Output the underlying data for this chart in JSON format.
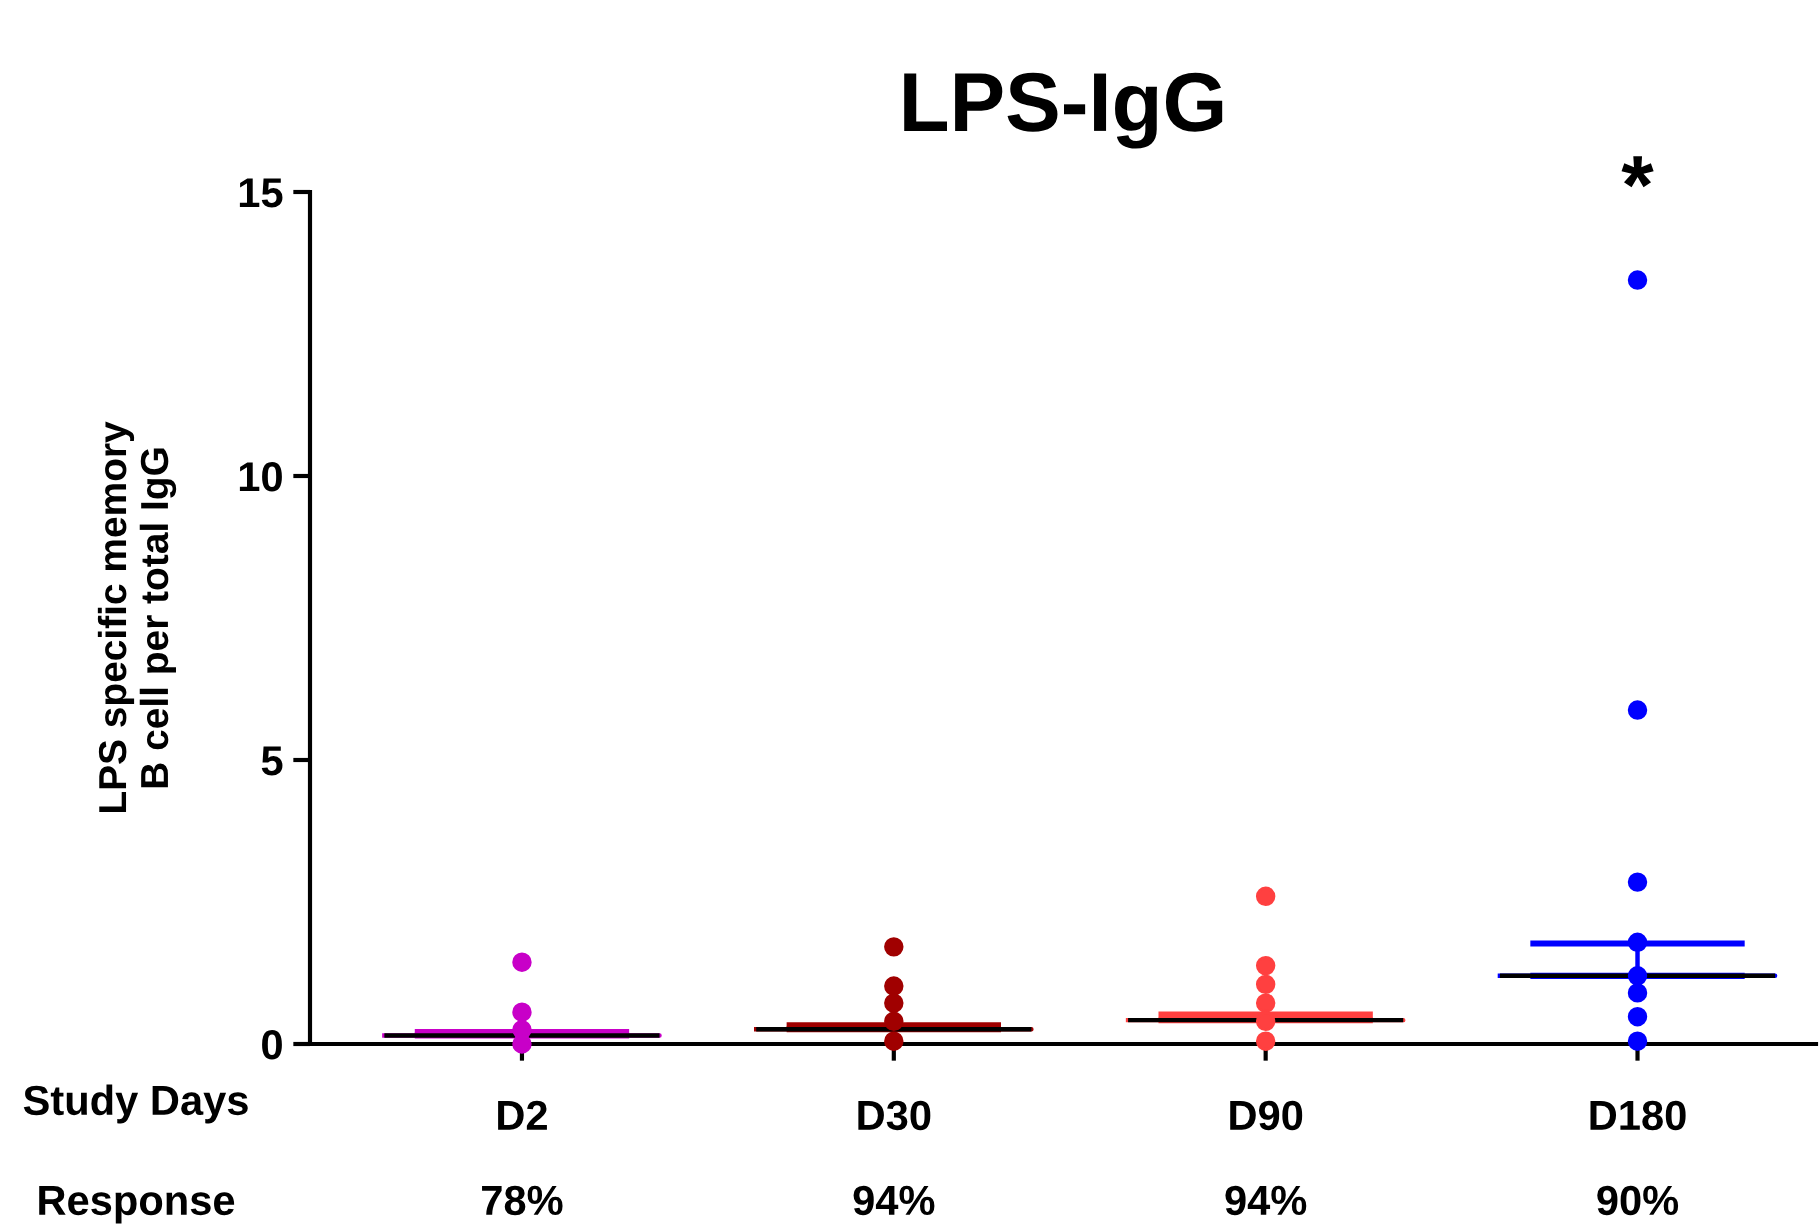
{
  "chart_data": {
    "type": "scatter",
    "title": "LPS-IgG",
    "xlabel": "Study Days",
    "ylabel": "LPS specific memory\nB cell per total IgG",
    "categories": [
      "D2",
      "D30",
      "D90",
      "D180"
    ],
    "series": [
      {
        "color": "#c800c8",
        "marker": "circle",
        "x": [
          "D2",
          "D2",
          "D2",
          "D2"
        ],
        "values": [
          1.44,
          0.56,
          0.25,
          0
        ]
      },
      {
        "color": "#a00000",
        "marker": "circle",
        "x": [
          "D30",
          "D30",
          "D30",
          "D30",
          "D30"
        ],
        "values": [
          1.71,
          1.02,
          0.72,
          0.4,
          0.05
        ]
      },
      {
        "color": "#ff4040",
        "marker": "circle",
        "x": [
          "D90",
          "D90",
          "D90",
          "D90",
          "D90",
          "D90"
        ],
        "values": [
          2.6,
          1.38,
          1.05,
          0.72,
          0.4,
          0.05
        ]
      },
      {
        "color": "#0000ff",
        "marker": "circle",
        "x": [
          "D180",
          "D180",
          "D180",
          "D180",
          "D180",
          "D180",
          "D180",
          "D180"
        ],
        "values": [
          13.45,
          5.88,
          2.85,
          1.79,
          1.2,
          0.9,
          0.48,
          0.05
        ]
      },
      {
        "type": "box",
        "colors": [
          "#c800c8",
          "#a00000",
          "#ff4040",
          "#0000ff"
        ],
        "boxes": [
          {
            "low": 0.15,
            "q1": 0.15,
            "median": 0.15,
            "q3": 0.15,
            "high": 0.21
          },
          {
            "low": 0.26,
            "q1": 0.26,
            "median": 0.26,
            "q3": 0.26,
            "high": 0.33
          },
          {
            "low": 0.42,
            "q1": 0.42,
            "median": 0.42,
            "q3": 0.42,
            "high": 0.52
          },
          {
            "low": 1.2,
            "q1": 1.2,
            "median": 1.2,
            "q3": 1.2,
            "high": 1.77
          }
        ]
      }
    ],
    "ylim": [
      0,
      15
    ],
    "yticks": [
      0,
      5,
      10,
      15
    ],
    "grid": false,
    "legend": false,
    "annotations": [
      "*",
      "Response",
      "78%",
      "94%",
      "94%",
      "90%"
    ]
  }
}
